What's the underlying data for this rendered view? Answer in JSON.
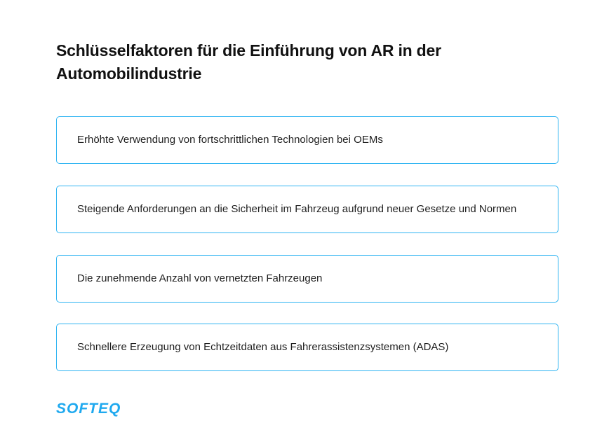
{
  "title": "Schlüsselfaktoren für die Einführung von AR in der Automobilindustrie",
  "factors": [
    "Erhöhte Verwendung von fortschrittlichen Technologien bei OEMs",
    "Steigende Anforderungen an die Sicherheit im Fahrzeug aufgrund neuer Gesetze und Normen",
    "Die zunehmende Anzahl von vernetzten Fahrzeugen",
    "Schnellere Erzeugung von Echtzeitdaten aus Fahrerassistenzsystemen (ADAS)"
  ],
  "logo": "SOFTEQ",
  "colors": {
    "accent": "#2fb4f2",
    "logo": "#1fa9ef"
  }
}
